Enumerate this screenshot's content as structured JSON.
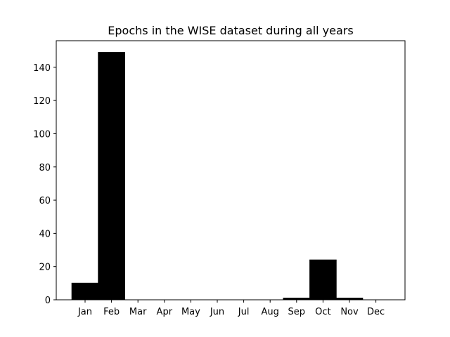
{
  "chart_data": {
    "type": "bar",
    "title": "Epochs in the WISE dataset during all years",
    "xlabel": "",
    "ylabel": "",
    "categories": [
      "Jan",
      "Feb",
      "Mar",
      "Apr",
      "May",
      "Jun",
      "Jul",
      "Aug",
      "Sep",
      "Oct",
      "Nov",
      "Dec"
    ],
    "values": [
      10,
      149,
      0,
      0,
      0,
      0,
      0,
      0,
      1,
      24,
      1,
      0
    ],
    "ylim": [
      0,
      156
    ],
    "yticks": [
      0,
      20,
      40,
      60,
      80,
      100,
      120,
      140
    ],
    "bar_color": "#000000",
    "grid": false,
    "legend": "none"
  }
}
